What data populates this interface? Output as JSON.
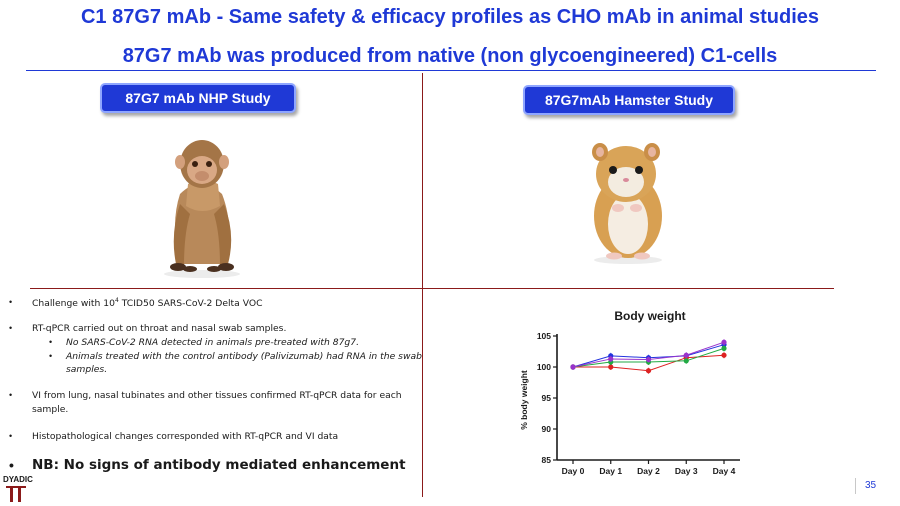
{
  "title": {
    "line1": "C1 87G7 mAb - Same safety & efficacy profiles as CHO mAb in animal studies",
    "line2": "87G7 mAb was produced from native (non glycoengineered) C1-cells"
  },
  "studies": {
    "nhp_label": "87G7 mAb NHP Study",
    "hamster_label": "87G7mAb Hamster Study"
  },
  "bullets": {
    "challenge_pre": "Challenge with 10",
    "challenge_sup": "4",
    "challenge_post": " TCID50 SARS-CoV-2 Delta VOC",
    "rtqpcr": "RT-qPCR carried out on throat and nasal swab samples.",
    "sub1": "No SARS-CoV-2 RNA detected in animals pre-treated with 87g7.",
    "sub2_line1": "Animals treated with the control antibody (Palivizumab) had RNA in the swab",
    "sub2_line2": "samples.",
    "vi_line1": "VI from lung, nasal tubinates and other tissues confirmed RT-qPCR data for each",
    "vi_line2": "sample.",
    "histo": "Histopathological changes corresponded with RT-qPCR and VI data",
    "nb": "NB: No signs of antibody mediated enhancement"
  },
  "chart_data": {
    "type": "line",
    "title": "Body weight",
    "xlabel": "",
    "ylabel": "% body weight",
    "categories": [
      "Day 0",
      "Day 1",
      "Day 2",
      "Day 3",
      "Day 4"
    ],
    "ylim": [
      85,
      105
    ],
    "yticks": [
      85,
      90,
      95,
      100,
      105
    ],
    "series": [
      {
        "name": "blue",
        "color": "#2233dd",
        "values": [
          100,
          101.8,
          101.5,
          101.8,
          103.6
        ]
      },
      {
        "name": "red",
        "color": "#dd2222",
        "values": [
          100,
          100.0,
          99.4,
          101.5,
          101.9
        ]
      },
      {
        "name": "green",
        "color": "#22aa44",
        "values": [
          100,
          100.8,
          100.8,
          101.0,
          103.0
        ]
      },
      {
        "name": "purple",
        "color": "#9933cc",
        "values": [
          100,
          101.3,
          101.2,
          101.9,
          104.0
        ]
      }
    ]
  },
  "page": {
    "number": "35"
  },
  "logo": {
    "text": "DYADIC"
  }
}
